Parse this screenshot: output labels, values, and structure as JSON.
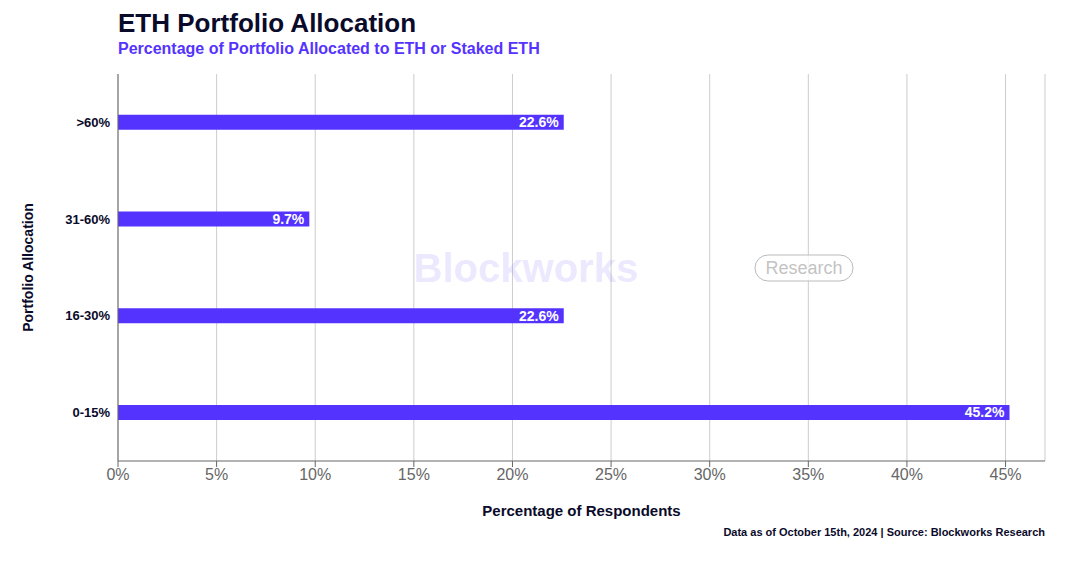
{
  "chart_data": {
    "type": "bar",
    "orientation": "horizontal",
    "title": "ETH Portfolio Allocation",
    "subtitle": "Percentage of Portfolio Allocated to ETH or Staked ETH",
    "xlabel": "Percentage of Respondents",
    "ylabel": "Portfolio Allocation",
    "categories": [
      "0-15%",
      "16-30%",
      "31-60%",
      ">60%"
    ],
    "values": [
      45.2,
      22.6,
      9.7,
      22.6
    ],
    "value_labels": [
      "45.2%",
      "22.6%",
      "9.7%",
      "22.6%"
    ],
    "data_labels": true,
    "color": "#5533FF",
    "xlim": [
      0,
      47
    ],
    "xticks": [
      {
        "value": 0,
        "label": "0%"
      },
      {
        "value": 5,
        "label": "5%"
      },
      {
        "value": 10,
        "label": "10%"
      },
      {
        "value": 15,
        "label": "15%"
      },
      {
        "value": 20,
        "label": "20%"
      },
      {
        "value": 25,
        "label": "25%"
      },
      {
        "value": 30,
        "label": "30%"
      },
      {
        "value": 35,
        "label": "35%"
      },
      {
        "value": 40,
        "label": "40%"
      },
      {
        "value": 45,
        "label": "45%"
      }
    ],
    "grid": true,
    "footnote": "Data as of October 15th, 2024 | Source: Blockworks Research",
    "annotations": [
      "Blockworks",
      "Research"
    ]
  }
}
